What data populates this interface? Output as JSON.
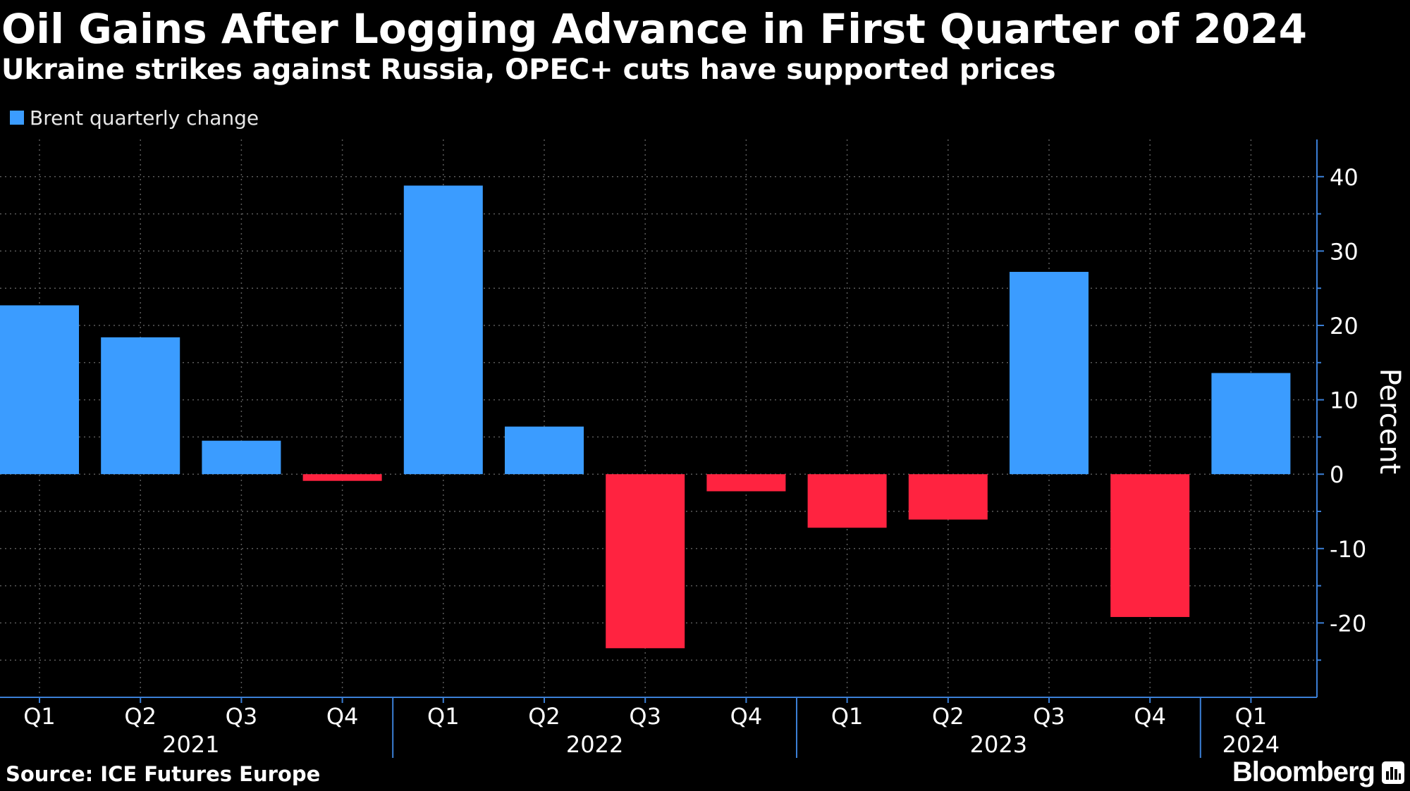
{
  "title": "Oil Gains After Logging Advance in First Quarter of 2024",
  "subtitle": "Ukraine strikes against Russia, OPEC+ cuts have supported prices",
  "source": "Source: ICE Futures Europe",
  "brand": "Bloomberg",
  "colors": {
    "positive": "#3b9cff",
    "negative": "#ff2340",
    "background": "#000000",
    "axis": "#3b7fd6",
    "grid": "#5a5a5a"
  },
  "chart_data": {
    "type": "bar",
    "legend": "Brent quarterly change",
    "legend_position": "top-left",
    "ylabel": "Percent",
    "y_axis_position": "right",
    "ylim": [
      -30,
      45
    ],
    "yticks": [
      40,
      30,
      20,
      10,
      0,
      -10,
      -20
    ],
    "grid": true,
    "categories": [
      "Q1",
      "Q2",
      "Q3",
      "Q4",
      "Q1",
      "Q2",
      "Q3",
      "Q4",
      "Q1",
      "Q2",
      "Q3",
      "Q4",
      "Q1"
    ],
    "values": [
      22.7,
      18.4,
      4.5,
      -0.9,
      38.8,
      6.4,
      -23.4,
      -2.3,
      -7.2,
      -6.1,
      27.2,
      -19.2,
      13.6
    ],
    "years": [
      {
        "label": "2021",
        "start": 0,
        "end": 3
      },
      {
        "label": "2022",
        "start": 4,
        "end": 7
      },
      {
        "label": "2023",
        "start": 8,
        "end": 11
      },
      {
        "label": "2024",
        "start": 12,
        "end": 12
      }
    ]
  }
}
